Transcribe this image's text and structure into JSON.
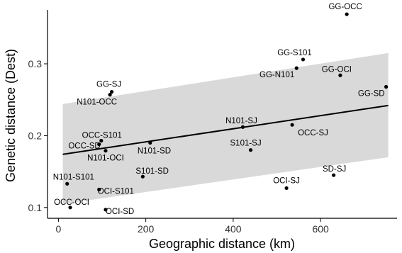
{
  "chart_data": {
    "type": "scatter",
    "title": "",
    "xlabel": "Geographic distance (km)",
    "ylabel": "Genetic distance (Dest)",
    "xlim": [
      -25,
      775
    ],
    "ylim": [
      0.085,
      0.375
    ],
    "xticks": [
      0,
      200,
      400,
      600
    ],
    "yticks": [
      0.1,
      0.2,
      0.3
    ],
    "ytick_labels": [
      "0.1",
      "0.2",
      "0.3"
    ],
    "grid": false,
    "colors": {
      "points": "#000000",
      "band": "#d9d9d9",
      "line": "#000000"
    },
    "trend": {
      "x": [
        10,
        755
      ],
      "y": [
        0.174,
        0.242
      ]
    },
    "confidence_band": {
      "x": [
        10,
        755
      ],
      "lower": [
        0.105,
        0.17
      ],
      "upper": [
        0.244,
        0.315
      ]
    },
    "points": [
      {
        "label": "GG-OCC",
        "x": 660,
        "y": 0.369
      },
      {
        "label": "GG-S101",
        "x": 560,
        "y": 0.306
      },
      {
        "label": "GG-N101",
        "x": 545,
        "y": 0.294
      },
      {
        "label": "GG-OCI",
        "x": 645,
        "y": 0.284
      },
      {
        "label": "GG-SD",
        "x": 750,
        "y": 0.268
      },
      {
        "label": "GG-SJ",
        "x": 122,
        "y": 0.261
      },
      {
        "label": "N101-OCC",
        "x": 118,
        "y": 0.257
      },
      {
        "label": "N101-SJ",
        "x": 422,
        "y": 0.212
      },
      {
        "label": "OCC-SJ",
        "x": 535,
        "y": 0.215
      },
      {
        "label": "S101-SJ",
        "x": 440,
        "y": 0.18
      },
      {
        "label": "OCC-S101",
        "x": 98,
        "y": 0.193
      },
      {
        "label": "OCC-SD",
        "x": 93,
        "y": 0.188
      },
      {
        "label": "N101-SD",
        "x": 210,
        "y": 0.19
      },
      {
        "label": "N101-OCI",
        "x": 108,
        "y": 0.179
      },
      {
        "label": "S101-SD",
        "x": 193,
        "y": 0.143
      },
      {
        "label": "N101-S101",
        "x": 20,
        "y": 0.133
      },
      {
        "label": "OCI-S101",
        "x": 93,
        "y": 0.125
      },
      {
        "label": "OCI-SJ",
        "x": 522,
        "y": 0.127
      },
      {
        "label": "SD-SJ",
        "x": 630,
        "y": 0.145
      },
      {
        "label": "OCC-OCI",
        "x": 27,
        "y": 0.1
      },
      {
        "label": "OCI-SD",
        "x": 108,
        "y": 0.097
      }
    ]
  }
}
